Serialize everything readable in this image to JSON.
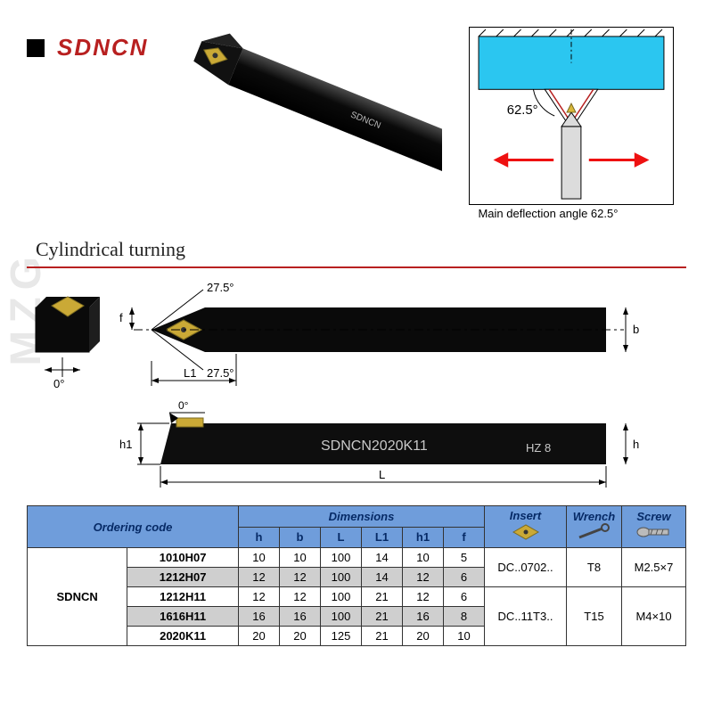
{
  "watermark": "MZG",
  "title": "SDNCN",
  "deflection_angle_label": "62.5°",
  "deflection_caption": "Main deflection angle 62.5°",
  "section_title": "Cylindrical turning",
  "angles": {
    "top": "27.5°",
    "bottom": "27.5°",
    "end_front": "0°",
    "end_side": "0°"
  },
  "dims": {
    "f": "f",
    "L1": "L1",
    "L": "L",
    "b": "b",
    "h1": "h1",
    "h": "h"
  },
  "tool_label": "SDNCN2020K11",
  "tool_hz": "HZ 8",
  "colors": {
    "red": "#b82020",
    "header_bg": "#6f9ddb",
    "header_text": "#062a66",
    "row_alt": "#cfcfcf",
    "diagram_fill": "#2bc6f0",
    "insert_yellow": "#d9b83a",
    "tool_black": "#0a0a0a",
    "dim_line": "#1a1a1a"
  },
  "table": {
    "headers": {
      "ordering": "Ordering code",
      "dimensions": "Dimensions",
      "insert": "Insert",
      "wrench": "Wrench",
      "screw": "Screw"
    },
    "dim_cols": [
      "h",
      "b",
      "L",
      "L1",
      "h1",
      "f"
    ],
    "series": "SDNCN",
    "rows": [
      {
        "model": "1010H07",
        "h": 10,
        "b": 10,
        "L": 100,
        "L1": 14,
        "h1": 10,
        "f": 5,
        "insert": "DC..0702..",
        "wrench": "T8",
        "screw": "M2.5×7",
        "alt": false
      },
      {
        "model": "1212H07",
        "h": 12,
        "b": 12,
        "L": 100,
        "L1": 14,
        "h1": 12,
        "f": 6,
        "insert": "",
        "wrench": "",
        "screw": "",
        "alt": true
      },
      {
        "model": "1212H11",
        "h": 12,
        "b": 12,
        "L": 100,
        "L1": 21,
        "h1": 12,
        "f": 6,
        "insert": "DC..11T3..",
        "wrench": "T15",
        "screw": "M4×10",
        "alt": false
      },
      {
        "model": "1616H11",
        "h": 16,
        "b": 16,
        "L": 100,
        "L1": 21,
        "h1": 16,
        "f": 8,
        "insert": "",
        "wrench": "",
        "screw": "",
        "alt": true
      },
      {
        "model": "2020K11",
        "h": 20,
        "b": 20,
        "L": 125,
        "L1": 21,
        "h1": 20,
        "f": 10,
        "insert": "",
        "wrench": "",
        "screw": "",
        "alt": false
      }
    ],
    "insert_spans": [
      2,
      3
    ],
    "wrench_spans": [
      2,
      3
    ],
    "screw_spans": [
      2,
      3
    ]
  }
}
